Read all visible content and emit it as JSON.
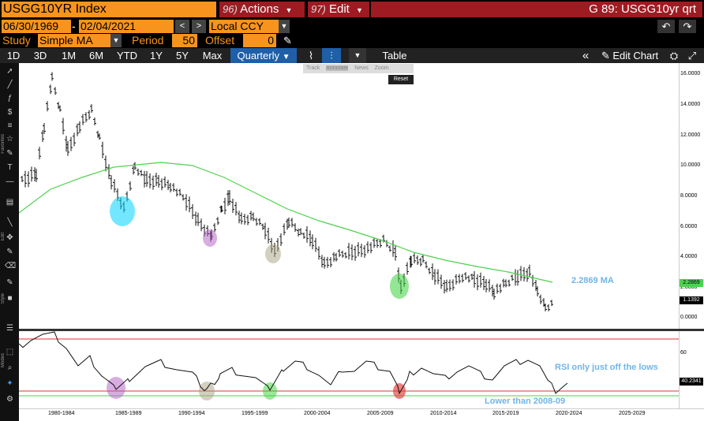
{
  "header": {
    "ticker": "USGG10YR Index",
    "actions_num": "96)",
    "actions_label": "Actions",
    "edit_num": "97)",
    "edit_label": "Edit",
    "page_title": "G 89: USGG10yr qrt"
  },
  "range": {
    "start_date": "06/30/1969",
    "separator": "-",
    "end_date": "02/04/2021",
    "currency": "Local CCY"
  },
  "study": {
    "label": "Study",
    "type": "Simple MA",
    "period_label": "Period",
    "period_value": "50",
    "offset_label": "Offset",
    "offset_value": "0"
  },
  "tabs": [
    "1D",
    "3D",
    "1M",
    "6M",
    "YTD",
    "1Y",
    "5Y",
    "Max"
  ],
  "frequency": "Quarterly",
  "table_label": "Table",
  "edit_chart_label": "Edit Chart",
  "toolbar_pop": [
    "Track",
    "Annotate",
    "News",
    "Zoom"
  ],
  "reset_label": "Reset",
  "left_tabs": [
    "Favorites",
    "Edit",
    "Style",
    "Modes"
  ],
  "annotations": {
    "ma_label": "2.2869 MA",
    "rsi_label": "RSI only just off the lows",
    "lower_label": "Lower than 2008-09"
  },
  "axis_right_main": [
    "16.0000",
    "14.0000",
    "12.0000",
    "10.0000",
    "8.0000",
    "6.0000",
    "4.0000",
    "2.0000",
    "0.0000"
  ],
  "price_badges": {
    "ma": "2.2869",
    "last": "1.1392"
  },
  "axis_right_rsi": [
    "60",
    "40.2341"
  ],
  "x_labels": [
    "1980-1984",
    "1985-1989",
    "1990-1994",
    "1995-1999",
    "2000-2004",
    "2005-2009",
    "2010-2014",
    "2015-2019",
    "2020-2024",
    "2025-2029"
  ],
  "colors": {
    "orange": "#f7941d",
    "red": "#9e1b22",
    "ma_line": "#4fd14f",
    "annot_blue": "#6fb5e8"
  }
}
